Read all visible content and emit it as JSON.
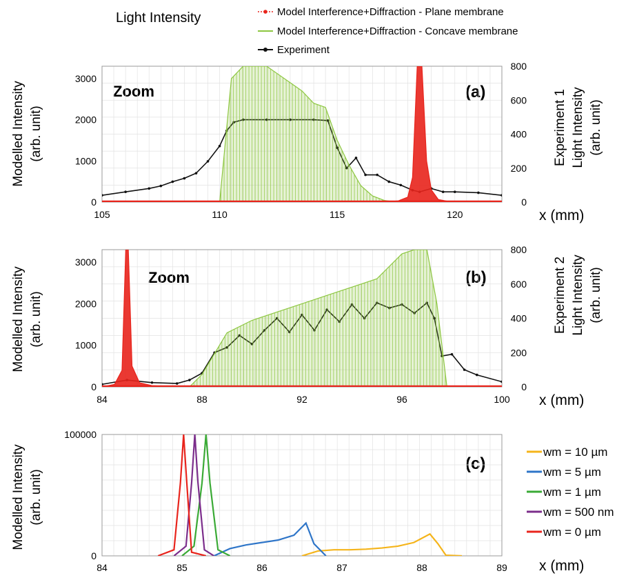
{
  "figure": {
    "title": "Light Intensity",
    "legend": [
      {
        "label": "Model Interference+Diffraction - Plane membrane",
        "color": "#e8241c",
        "marker": "dot"
      },
      {
        "label": "Model Interference+Diffraction - Concave membrane",
        "color": "#8cc63f",
        "marker": "line"
      },
      {
        "label": "Experiment",
        "color": "#111111",
        "marker": "dot"
      }
    ]
  },
  "chart_data": [
    {
      "type": "line",
      "panel": "(a)",
      "annotation": "Zoom",
      "ylabel": [
        "Modelled Intensity",
        "(arb. unit)"
      ],
      "ylabel_right": [
        "Experiment 1",
        "Light Intensity",
        "(arb. unit)"
      ],
      "xlabel": "x (mm)",
      "xlim": [
        105,
        122
      ],
      "ylim": [
        0,
        3300
      ],
      "ylim_right": [
        0,
        800
      ],
      "xticks": [
        "105",
        "110",
        "115",
        "120"
      ],
      "yticks": [
        "0",
        "1000",
        "2000",
        "3000"
      ],
      "yticks_right": [
        "0",
        "200",
        "400",
        "600",
        "800"
      ],
      "grid": true,
      "series": [
        {
          "name": "Experiment",
          "axis": "right",
          "color": "#111111",
          "x": [
            105,
            106,
            107,
            107.5,
            108,
            108.5,
            109,
            109.5,
            110,
            110.3,
            110.6,
            111,
            112,
            113,
            114,
            114.6,
            115,
            115.4,
            115.8,
            116.2,
            116.7,
            117.2,
            117.7,
            118.2,
            118.5,
            119,
            119.5,
            120,
            121,
            122
          ],
          "y": [
            40,
            60,
            80,
            95,
            120,
            140,
            170,
            240,
            330,
            420,
            470,
            485,
            485,
            485,
            485,
            480,
            320,
            200,
            260,
            160,
            160,
            120,
            100,
            70,
            60,
            80,
            60,
            60,
            55,
            40
          ]
        },
        {
          "name": "Model Interference+Diffraction - Concave membrane",
          "axis": "left",
          "color": "#8cc63f",
          "x": [
            110,
            110.5,
            111,
            111.5,
            112,
            112.5,
            113,
            113.5,
            114,
            114.5,
            115,
            115.5,
            116,
            116.5,
            117,
            117.5
          ],
          "y": [
            0,
            3000,
            3300,
            3300,
            3300,
            3100,
            2900,
            2700,
            2400,
            2300,
            1500,
            900,
            400,
            150,
            40,
            0
          ]
        },
        {
          "name": "Model Interference+Diffraction - Plane membrane",
          "axis": "left",
          "color": "#e8241c",
          "x": [
            117,
            117.6,
            118,
            118.2,
            118.4,
            118.5,
            118.6,
            118.8,
            119,
            119.3,
            119.7,
            120.5
          ],
          "y": [
            0,
            30,
            120,
            600,
            3300,
            3300,
            3300,
            1000,
            300,
            60,
            20,
            0
          ]
        }
      ]
    },
    {
      "type": "line",
      "panel": "(b)",
      "annotation": "Zoom",
      "ylabel": [
        "Modelled Intensity",
        "(arb. unit)"
      ],
      "ylabel_right": [
        "Experiment 2",
        "Light Intensity",
        "(arb. unit)"
      ],
      "xlabel": "x (mm)",
      "xlim": [
        84,
        100
      ],
      "ylim": [
        0,
        3300
      ],
      "ylim_right": [
        0,
        800
      ],
      "xticks": [
        "84",
        "88",
        "92",
        "96",
        "100"
      ],
      "yticks": [
        "0",
        "1000",
        "2000",
        "3000"
      ],
      "yticks_right": [
        "0",
        "200",
        "400",
        "600",
        "800"
      ],
      "grid": true,
      "series": [
        {
          "name": "Experiment",
          "axis": "right",
          "color": "#111111",
          "x": [
            84,
            85,
            86,
            87,
            87.5,
            88,
            88.5,
            89,
            89.5,
            90,
            90.5,
            91,
            91.5,
            92,
            92.5,
            93,
            93.5,
            94,
            94.5,
            95,
            95.5,
            96,
            96.5,
            97,
            97.3,
            97.6,
            98,
            98.5,
            99,
            100
          ],
          "y": [
            15,
            40,
            25,
            20,
            40,
            80,
            200,
            230,
            300,
            250,
            330,
            400,
            320,
            420,
            330,
            450,
            380,
            480,
            400,
            490,
            460,
            480,
            430,
            490,
            400,
            180,
            190,
            100,
            70,
            30
          ]
        },
        {
          "name": "Model Interference+Diffraction - Concave membrane",
          "axis": "left",
          "color": "#8cc63f",
          "x": [
            87.5,
            88,
            88.5,
            89,
            90,
            91,
            92,
            93,
            94,
            95,
            95.5,
            96,
            96.5,
            97,
            97.4,
            97.8
          ],
          "y": [
            0,
            300,
            800,
            1300,
            1600,
            1800,
            2000,
            2200,
            2400,
            2600,
            2900,
            3200,
            3300,
            3300,
            2000,
            0
          ]
        },
        {
          "name": "Model Interference+Diffraction - Plane membrane",
          "axis": "left",
          "color": "#e8241c",
          "x": [
            84,
            84.5,
            84.8,
            84.95,
            85.05,
            85.2,
            85.5,
            86,
            87,
            88,
            100
          ],
          "y": [
            0,
            60,
            400,
            3300,
            3300,
            500,
            100,
            30,
            0,
            0,
            0
          ]
        }
      ]
    },
    {
      "type": "line",
      "panel": "(c)",
      "ylabel": [
        "Modelled Intensity",
        "(arb. unit)"
      ],
      "xlabel": "x (mm)",
      "xlim": [
        84,
        89
      ],
      "ylim": [
        0,
        100000
      ],
      "xticks": [
        "84",
        "85",
        "86",
        "87",
        "88",
        "89"
      ],
      "yticks": [
        "0",
        "100000"
      ],
      "grid": true,
      "series": [
        {
          "name": "wm = 10 µm",
          "color": "#f5b41a",
          "x": [
            86.5,
            86.7,
            86.9,
            87.1,
            87.3,
            87.5,
            87.7,
            87.9,
            88.1,
            88.2,
            88.3,
            88.5
          ],
          "y": [
            0,
            4000,
            5000,
            5000,
            5500,
            6500,
            8000,
            11000,
            18000,
            10000,
            500,
            0
          ]
        },
        {
          "name": "wm = 5 µm",
          "color": "#2e75c8",
          "x": [
            85.4,
            85.6,
            85.8,
            86,
            86.2,
            86.4,
            86.55,
            86.65,
            86.8
          ],
          "y": [
            0,
            6000,
            9000,
            11000,
            13000,
            17000,
            27000,
            10000,
            0
          ]
        },
        {
          "name": "wm = 1 µm",
          "color": "#3aaa35",
          "x": [
            85,
            85.15,
            85.25,
            85.3,
            85.35,
            85.45,
            85.6
          ],
          "y": [
            0,
            8000,
            60000,
            100000,
            60000,
            5000,
            0
          ]
        },
        {
          "name": "wm = 500 nm",
          "color": "#7b2d8b",
          "x": [
            84.9,
            85.05,
            85.12,
            85.16,
            85.2,
            85.28,
            85.4
          ],
          "y": [
            0,
            8000,
            60000,
            100000,
            60000,
            5000,
            0
          ]
        },
        {
          "name": "wm = 0 µm",
          "color": "#e8241c",
          "x": [
            84.7,
            84.9,
            84.98,
            85.02,
            85.06,
            85.12,
            85.3
          ],
          "y": [
            0,
            5000,
            60000,
            100000,
            60000,
            3000,
            0
          ]
        }
      ]
    }
  ]
}
